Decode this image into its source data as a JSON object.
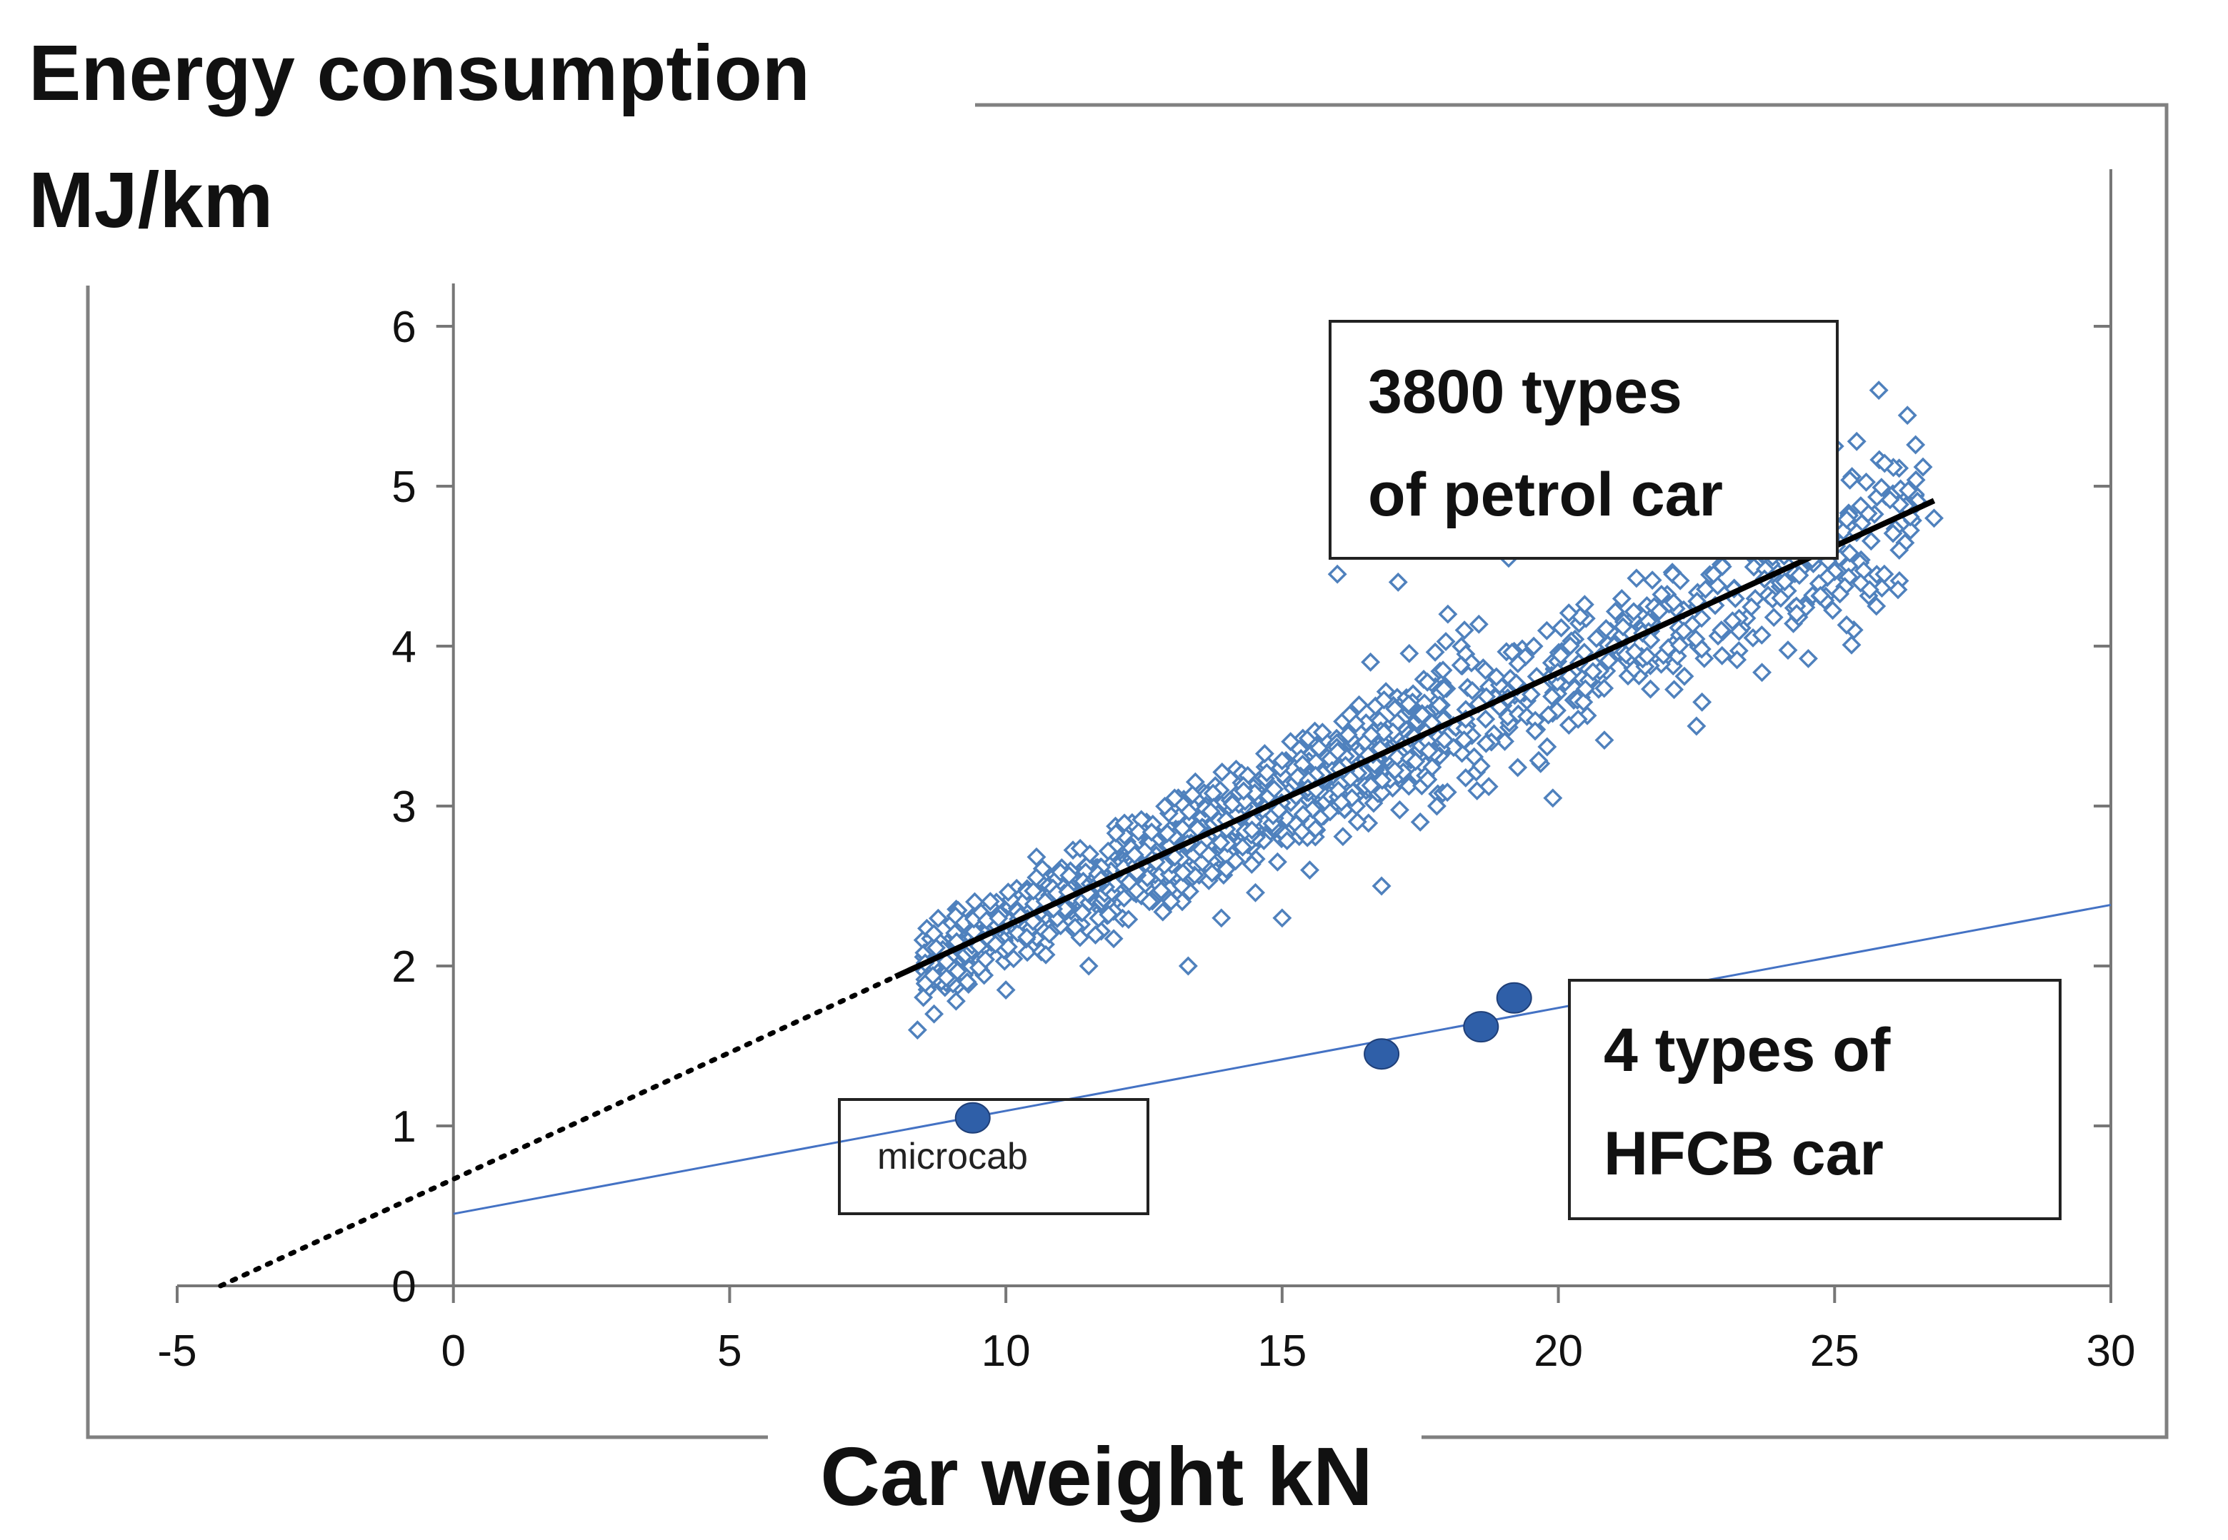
{
  "chart_data": {
    "type": "scatter",
    "title": "Energy consumption",
    "ylabel": "MJ/km",
    "xlabel": "Car weight kN",
    "xlim": [
      -5,
      30
    ],
    "ylim": [
      0,
      6
    ],
    "xticks": [
      "-5",
      "0",
      "5",
      "10",
      "15",
      "20",
      "25",
      "30"
    ],
    "yticks": [
      "0",
      "1",
      "2",
      "3",
      "4",
      "5",
      "6"
    ],
    "grid": false,
    "colors": {
      "petrol": "#4f81bd",
      "hfcb": "#2f5fa8",
      "trend": "#000000",
      "hfcb_line": "#4472c4",
      "frame": "#808080"
    },
    "series": [
      {
        "name": "3800 types of petrol car",
        "marker": "diamond-open",
        "trend": {
          "slope": 0.1583,
          "intercept": 0.667,
          "x_range": [
            8.0,
            26.8
          ],
          "extrapolated_dotted_to_y0": true
        },
        "x_range": [
          8.3,
          26.8
        ],
        "outliers": [
          {
            "x": 25.8,
            "y": 5.6
          },
          {
            "x": 25.0,
            "y": 5.25
          },
          {
            "x": 25.4,
            "y": 5.28
          },
          {
            "x": 26.6,
            "y": 5.12
          },
          {
            "x": 26.8,
            "y": 4.8
          },
          {
            "x": 25.9,
            "y": 4.45
          },
          {
            "x": 24.3,
            "y": 4.55
          },
          {
            "x": 23.9,
            "y": 4.18
          },
          {
            "x": 22.5,
            "y": 3.5
          },
          {
            "x": 22.6,
            "y": 3.65
          },
          {
            "x": 16.0,
            "y": 4.45
          },
          {
            "x": 17.1,
            "y": 4.4
          },
          {
            "x": 18.3,
            "y": 4.1
          },
          {
            "x": 19.1,
            "y": 4.55
          },
          {
            "x": 18.0,
            "y": 4.2
          },
          {
            "x": 17.8,
            "y": 3.0
          },
          {
            "x": 19.9,
            "y": 3.05
          },
          {
            "x": 18.6,
            "y": 3.25
          },
          {
            "x": 15.0,
            "y": 2.3
          },
          {
            "x": 16.8,
            "y": 2.5
          },
          {
            "x": 15.5,
            "y": 2.6
          },
          {
            "x": 13.3,
            "y": 2.0
          },
          {
            "x": 11.5,
            "y": 2.0
          },
          {
            "x": 8.4,
            "y": 1.6
          },
          {
            "x": 8.7,
            "y": 1.7
          },
          {
            "x": 9.3,
            "y": 1.9
          },
          {
            "x": 10.0,
            "y": 1.85
          },
          {
            "x": 16.6,
            "y": 3.9
          },
          {
            "x": 17.5,
            "y": 2.9
          },
          {
            "x": 13.9,
            "y": 2.3
          }
        ]
      },
      {
        "name": "4 types of HFCB car",
        "marker": "circle-filled",
        "points": [
          {
            "x": 9.4,
            "y": 1.05,
            "label": "microcab"
          },
          {
            "x": 16.8,
            "y": 1.45
          },
          {
            "x": 18.6,
            "y": 1.62
          },
          {
            "x": 19.2,
            "y": 1.8
          }
        ],
        "trend": {
          "slope": 0.0644,
          "intercept": 0.45,
          "x_range": [
            0,
            30
          ]
        }
      }
    ],
    "annotations": {
      "petrol_box": [
        "3800 types",
        "of petrol car"
      ],
      "hfcb_box": [
        "4 types of",
        "HFCB car"
      ],
      "microcab_label": "microcab"
    }
  }
}
